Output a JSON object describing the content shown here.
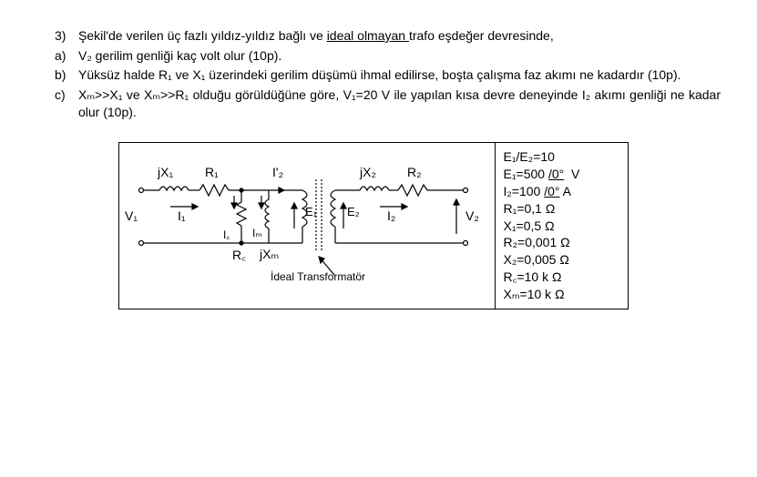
{
  "question": {
    "num3": "3)",
    "line3": "Şekil'de verilen üç fazlı yıldız-yıldız bağlı ve ",
    "line3u": "ideal olmayan ",
    "line3b": "trafo eşdeğer devresinde,",
    "numa": "a)",
    "linea": "V₂ gerilim genliği kaç volt olur (10p).",
    "numb": "b)",
    "lineb": "Yüksüz halde R₁ ve X₁ üzerindeki gerilim düşümü ihmal edilirse, boşta çalışma faz akımı ne kadardır (10p).",
    "numc": "c)",
    "linec": "Xₘ>>X₁ ve Xₘ>>R₁ olduğu görüldüğüne göre,  V₁=20 V ile yapılan kısa devre deneyinde I₂ akımı genliği ne kadar olur (10p)."
  },
  "params": {
    "p1": "E₁/E₂=10",
    "p2": "E₁=500 /0°  V",
    "p3": "I₂=100 /0° A",
    "p4": "R₁=0,1 Ω",
    "p5": "X₁=0,5 Ω",
    "p6": "R₂=0,001 Ω",
    "p7": "X₂=0,005 Ω",
    "p8": "R꜀=10 k Ω",
    "p9": "Xₘ=10 k Ω"
  },
  "labels": {
    "jX1": "jX₁",
    "R1": "R₁",
    "Ip2": "I'₂",
    "jX2": "jX₂",
    "R2": "R₂",
    "V1": "V₁",
    "I1": "I₁",
    "Ic": "I꜀",
    "Im": "Iₘ",
    "E1": "E₁",
    "E2": "E₂",
    "I2": "I₂",
    "V2": "V₂",
    "Rc": "R꜀",
    "jXm": "jXₘ",
    "ideal": "İdeal Transformatör"
  },
  "style": {
    "page_bg": "#ffffff",
    "text_color": "#000000",
    "font_size_body": 14,
    "font_size_label": 14,
    "border_color": "#000000",
    "stroke_width": 1.2,
    "figure_width": 560,
    "circuit_width": 400,
    "circuit_height": 160
  }
}
